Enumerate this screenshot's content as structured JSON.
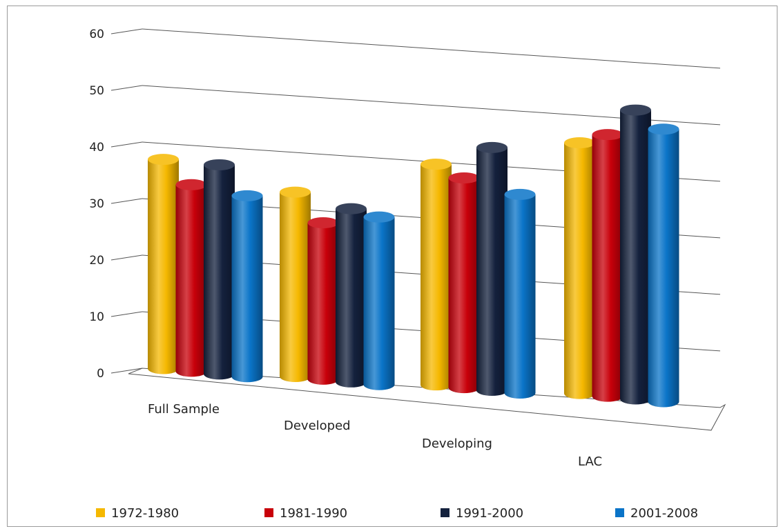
{
  "chart_data": {
    "type": "bar",
    "style": "3d-cylinder",
    "categories": [
      "Full Sample",
      "Developed",
      "Developing",
      "LAC"
    ],
    "series": [
      {
        "name": "1972-1980",
        "color": "#F5B800",
        "values": [
          37,
          33,
          40,
          46
        ]
      },
      {
        "name": "1981-1990",
        "color": "#C8000A",
        "values": [
          33,
          28,
          38,
          48
        ]
      },
      {
        "name": "1991-2000",
        "color": "#14213D",
        "values": [
          37,
          31,
          44,
          53
        ]
      },
      {
        "name": "2001-2008",
        "color": "#0A74C8",
        "values": [
          32,
          30,
          36,
          50
        ]
      }
    ],
    "y_ticks": [
      "0",
      "10",
      "20",
      "30",
      "40",
      "50",
      "60"
    ],
    "ylim": [
      0,
      60
    ],
    "grid": true,
    "legend_position": "bottom"
  }
}
